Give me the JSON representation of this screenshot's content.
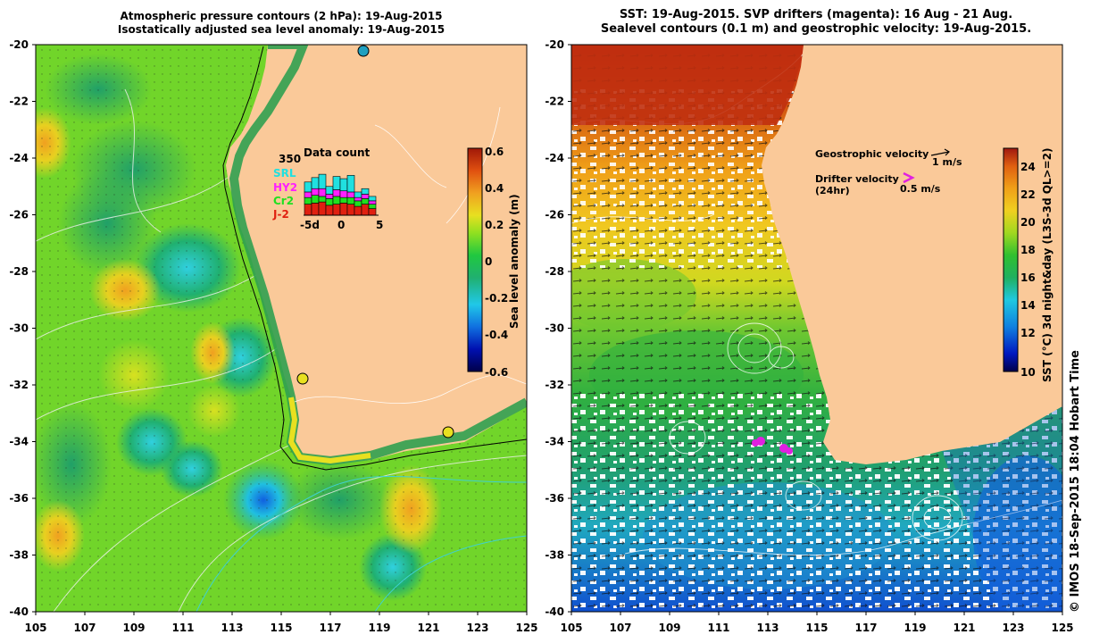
{
  "left_panel": {
    "title_line1": "Atmospheric pressure contours (2 hPa): 19-Aug-2015",
    "title_line2": "Isostatically adjusted sea level anomaly: 19-Aug-2015",
    "colorbar": {
      "label": "Sea level anomaly (m)",
      "ticks": [
        "0.6",
        "0.4",
        "0.2",
        "0",
        "-0.2",
        "-0.4",
        "-0.6"
      ],
      "colors": [
        "#00004a",
        "#0010b0",
        "#1070e0",
        "#20c8e8",
        "#20b070",
        "#20c840",
        "#90e020",
        "#e8e020",
        "#f0a020",
        "#e05010",
        "#a01808"
      ]
    },
    "data_count": {
      "title": "Data count",
      "max_label": "350",
      "legend": [
        {
          "name": "SRL",
          "color": "#20e0e0"
        },
        {
          "name": "HY2",
          "color": "#ff20ff"
        },
        {
          "name": "Cr2",
          "color": "#20e020"
        },
        {
          "name": "J-2",
          "color": "#e02010"
        }
      ],
      "x_ticks": [
        "-5d",
        "0",
        "5"
      ]
    }
  },
  "right_panel": {
    "title_line1": "SST: 19-Aug-2015. SVP drifters (magenta): 16 Aug - 21 Aug.",
    "title_line2": "Sealevel contours (0.1 m) and geostrophic velocity: 19-Aug-2015.",
    "colorbar": {
      "label": "SST (°C) 3d night&day (L3S-3d QL>=2)",
      "ticks": [
        "24",
        "22",
        "20",
        "18",
        "16",
        "14",
        "12",
        "10"
      ],
      "colors": [
        "#00004a",
        "#0018c0",
        "#1080e0",
        "#20c8e0",
        "#20b060",
        "#30c030",
        "#a0d820",
        "#f0d020",
        "#f0a018",
        "#e06010",
        "#a01810"
      ]
    },
    "geo_velocity_label": "Geostrophic velocity",
    "geo_velocity_scale": "1 m/s",
    "drifter_label_line1": "Drifter velocity",
    "drifter_label_line2": "(24hr)",
    "drifter_scale": "0.5 m/s"
  },
  "axes": {
    "y_ticks": [
      "-20",
      "-22",
      "-24",
      "-26",
      "-28",
      "-30",
      "-32",
      "-34",
      "-36",
      "-38",
      "-40"
    ],
    "x_ticks": [
      "105",
      "107",
      "109",
      "111",
      "113",
      "115",
      "117",
      "119",
      "121",
      "123",
      "125"
    ]
  },
  "colors": {
    "land": "#fac999",
    "ocean_green": "#30c040"
  },
  "credit": "© IMOS 18-Sep-2015 18:04 Hobart Time"
}
